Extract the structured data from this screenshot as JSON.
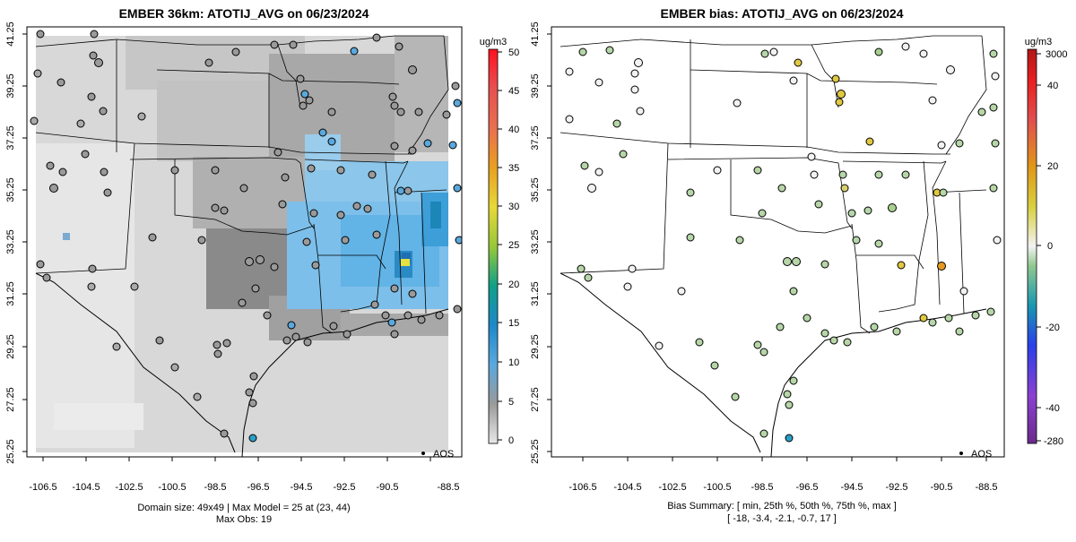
{
  "left_panel": {
    "title": "EMBER 36km: ATOTIJ_AVG on 06/23/2024",
    "legend_unit": "ug/m3",
    "legend_ticks": [
      "50",
      "45",
      "40",
      "35",
      "30",
      "25",
      "20",
      "15",
      "10",
      "5",
      "0"
    ],
    "site_legend": "AQS",
    "footer_line1": "Domain size: 49x49 | Max Model = 25 at (23, 44)",
    "footer_line2": "Max Obs: 19"
  },
  "right_panel": {
    "title": "EMBER bias: ATOTIJ_AVG on 06/23/2024",
    "legend_unit": "ug/m3",
    "legend_ticks": [
      "3000",
      "40",
      "20",
      "0",
      "-20",
      "-40",
      "-280"
    ],
    "site_legend": "AQS",
    "footer_line1": "Bias Summary: [ min, 25th %, 50th %, 75th %, max ]",
    "footer_line2": "[ -18,   -3.4,   -2.1,   -0.7,   17 ]"
  },
  "axes": {
    "x_ticks": [
      "-106.5",
      "-104.5",
      "-102.5",
      "-100.5",
      "-98.5",
      "-96.5",
      "-94.5",
      "-92.5",
      "-90.5",
      "-88.5"
    ],
    "y_ticks": [
      "41.25",
      "39.25",
      "37.25",
      "35.25",
      "33.25",
      "31.25",
      "29.25",
      "27.25",
      "25.25"
    ]
  },
  "colors": {
    "max_marker": "#e8e040",
    "bias_positive": "#e0c840",
    "bias_negative": "#b6d6a8",
    "bias_strong_positive": "#e39a20"
  }
}
